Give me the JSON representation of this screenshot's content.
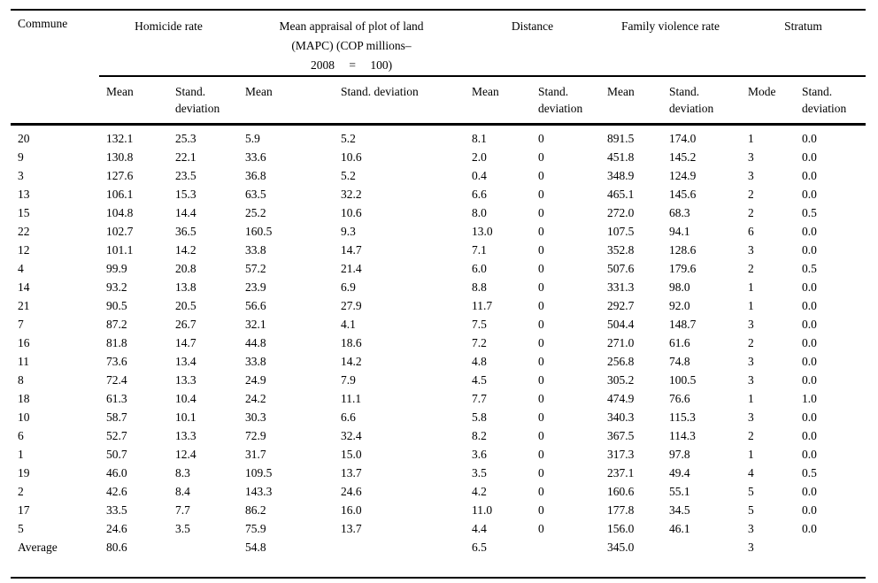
{
  "table": {
    "header": {
      "commune_label": "Commune",
      "groups": [
        {
          "label": "Homicide rate"
        },
        {
          "lines": [
            "Mean appraisal of plot of land",
            "(MAPC) (COP millions–",
            "2008 = 100)"
          ]
        },
        {
          "label": "Distance"
        },
        {
          "label": "Family violence rate"
        },
        {
          "label": "Stratum"
        }
      ],
      "subheaders": [
        "Mean",
        "Stand. deviation",
        "Mean",
        "Stand. deviation",
        "Mean",
        "Stand. deviation",
        "Mean",
        "Stand. deviation",
        "Mode",
        "Stand. deviation"
      ]
    },
    "rows": [
      {
        "commune": "20",
        "values": [
          "132.1",
          "25.3",
          "5.9",
          "5.2",
          "8.1",
          "0",
          "891.5",
          "174.0",
          "1",
          "0.0"
        ]
      },
      {
        "commune": "9",
        "values": [
          "130.8",
          "22.1",
          "33.6",
          "10.6",
          "2.0",
          "0",
          "451.8",
          "145.2",
          "3",
          "0.0"
        ]
      },
      {
        "commune": "3",
        "values": [
          "127.6",
          "23.5",
          "36.8",
          "5.2",
          "0.4",
          "0",
          "348.9",
          "124.9",
          "3",
          "0.0"
        ]
      },
      {
        "commune": "13",
        "values": [
          "106.1",
          "15.3",
          "63.5",
          "32.2",
          "6.6",
          "0",
          "465.1",
          "145.6",
          "2",
          "0.0"
        ]
      },
      {
        "commune": "15",
        "values": [
          "104.8",
          "14.4",
          "25.2",
          "10.6",
          "8.0",
          "0",
          "272.0",
          "68.3",
          "2",
          "0.5"
        ]
      },
      {
        "commune": "22",
        "values": [
          "102.7",
          "36.5",
          "160.5",
          "9.3",
          "13.0",
          "0",
          "107.5",
          "94.1",
          "6",
          "0.0"
        ]
      },
      {
        "commune": "12",
        "values": [
          "101.1",
          "14.2",
          "33.8",
          "14.7",
          "7.1",
          "0",
          "352.8",
          "128.6",
          "3",
          "0.0"
        ]
      },
      {
        "commune": "4",
        "values": [
          "99.9",
          "20.8",
          "57.2",
          "21.4",
          "6.0",
          "0",
          "507.6",
          "179.6",
          "2",
          "0.5"
        ]
      },
      {
        "commune": "14",
        "values": [
          "93.2",
          "13.8",
          "23.9",
          "6.9",
          "8.8",
          "0",
          "331.3",
          "98.0",
          "1",
          "0.0"
        ]
      },
      {
        "commune": "21",
        "values": [
          "90.5",
          "20.5",
          "56.6",
          "27.9",
          "11.7",
          "0",
          "292.7",
          "92.0",
          "1",
          "0.0"
        ]
      },
      {
        "commune": "7",
        "values": [
          "87.2",
          "26.7",
          "32.1",
          "4.1",
          "7.5",
          "0",
          "504.4",
          "148.7",
          "3",
          "0.0"
        ]
      },
      {
        "commune": "16",
        "values": [
          "81.8",
          "14.7",
          "44.8",
          "18.6",
          "7.2",
          "0",
          "271.0",
          "61.6",
          "2",
          "0.0"
        ]
      },
      {
        "commune": "11",
        "values": [
          "73.6",
          "13.4",
          "33.8",
          "14.2",
          "4.8",
          "0",
          "256.8",
          "74.8",
          "3",
          "0.0"
        ]
      },
      {
        "commune": "8",
        "values": [
          "72.4",
          "13.3",
          "24.9",
          "7.9",
          "4.5",
          "0",
          "305.2",
          "100.5",
          "3",
          "0.0"
        ]
      },
      {
        "commune": "18",
        "values": [
          "61.3",
          "10.4",
          "24.2",
          "11.1",
          "7.7",
          "0",
          "474.9",
          "76.6",
          "1",
          "1.0"
        ]
      },
      {
        "commune": "10",
        "values": [
          "58.7",
          "10.1",
          "30.3",
          "6.6",
          "5.8",
          "0",
          "340.3",
          "115.3",
          "3",
          "0.0"
        ]
      },
      {
        "commune": "6",
        "values": [
          "52.7",
          "13.3",
          "72.9",
          "32.4",
          "8.2",
          "0",
          "367.5",
          "114.3",
          "2",
          "0.0"
        ]
      },
      {
        "commune": "1",
        "values": [
          "50.7",
          "12.4",
          "31.7",
          "15.0",
          "3.6",
          "0",
          "317.3",
          "97.8",
          "1",
          "0.0"
        ]
      },
      {
        "commune": "19",
        "values": [
          "46.0",
          "8.3",
          "109.5",
          "13.7",
          "3.5",
          "0",
          "237.1",
          "49.4",
          "4",
          "0.5"
        ]
      },
      {
        "commune": "2",
        "values": [
          "42.6",
          "8.4",
          "143.3",
          "24.6",
          "4.2",
          "0",
          "160.6",
          "55.1",
          "5",
          "0.0"
        ]
      },
      {
        "commune": "17",
        "values": [
          "33.5",
          "7.7",
          "86.2",
          "16.0",
          "11.0",
          "0",
          "177.8",
          "34.5",
          "5",
          "0.0"
        ]
      },
      {
        "commune": "5",
        "values": [
          "24.6",
          "3.5",
          "75.9",
          "13.7",
          "4.4",
          "0",
          "156.0",
          "46.1",
          "3",
          "0.0"
        ]
      },
      {
        "commune": "Average",
        "values": [
          "80.6",
          "",
          "54.8",
          "",
          "6.5",
          "",
          "345.0",
          "",
          "3",
          ""
        ]
      }
    ]
  }
}
